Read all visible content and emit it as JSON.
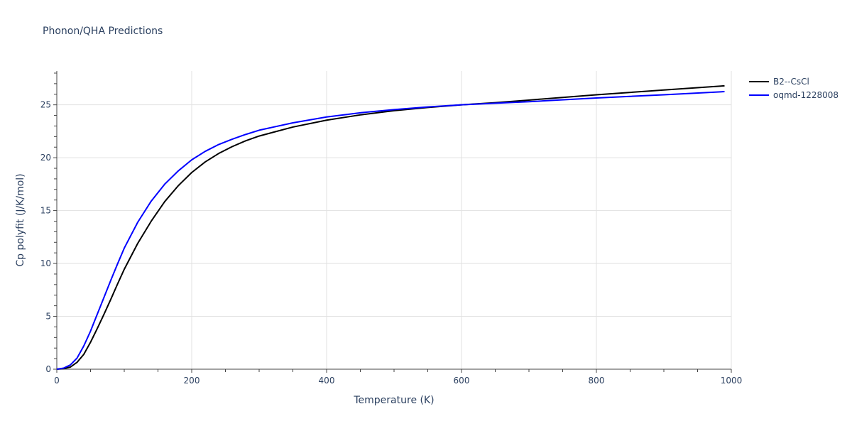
{
  "chart_data": {
    "type": "line",
    "title": "Phonon/QHA Predictions",
    "xlabel": "Temperature (K)",
    "ylabel": "Cp polyfit (J/K/mol)",
    "xlim": [
      0,
      1000
    ],
    "ylim": [
      0,
      28.2
    ],
    "xticks": [
      0,
      200,
      400,
      600,
      800,
      1000
    ],
    "yticks": [
      0,
      5,
      10,
      15,
      20,
      25
    ],
    "grid": true,
    "legend_position": "top-right",
    "series": [
      {
        "name": "B2--CsCl",
        "color": "#000000",
        "x": [
          0,
          10,
          20,
          30,
          40,
          50,
          60,
          70,
          80,
          90,
          100,
          120,
          140,
          160,
          180,
          200,
          220,
          240,
          260,
          280,
          300,
          350,
          400,
          450,
          500,
          550,
          600,
          650,
          700,
          800,
          900,
          990
        ],
        "y": [
          0,
          0.05,
          0.2,
          0.65,
          1.4,
          2.55,
          3.85,
          5.2,
          6.6,
          8.05,
          9.45,
          11.9,
          14.0,
          15.85,
          17.35,
          18.6,
          19.6,
          20.4,
          21.05,
          21.6,
          22.05,
          22.9,
          23.55,
          24.05,
          24.45,
          24.75,
          25.0,
          25.2,
          25.45,
          25.95,
          26.4,
          26.8
        ]
      },
      {
        "name": "oqmd-1228008",
        "color": "#0000ff",
        "x": [
          0,
          10,
          20,
          30,
          40,
          50,
          60,
          70,
          80,
          90,
          100,
          120,
          140,
          160,
          180,
          200,
          220,
          240,
          260,
          280,
          300,
          350,
          400,
          450,
          500,
          550,
          600,
          650,
          700,
          800,
          900,
          990
        ],
        "y": [
          0,
          0.1,
          0.4,
          1.05,
          2.2,
          3.6,
          5.2,
          6.8,
          8.4,
          9.95,
          11.45,
          13.9,
          15.9,
          17.5,
          18.75,
          19.8,
          20.6,
          21.25,
          21.75,
          22.2,
          22.6,
          23.3,
          23.85,
          24.25,
          24.55,
          24.8,
          25.0,
          25.15,
          25.3,
          25.65,
          25.95,
          26.25
        ]
      }
    ]
  }
}
